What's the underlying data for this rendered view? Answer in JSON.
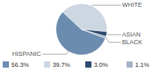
{
  "chart_data": {
    "type": "pie",
    "categories": [
      "HISPANIC",
      "WHITE",
      "ASIAN",
      "BLACK"
    ],
    "values": [
      56.3,
      39.7,
      3.0,
      1.1
    ],
    "value_labels": [
      "56.3%",
      "39.7%",
      "3.0%",
      "1.1%"
    ],
    "colors": [
      "#6b8cae",
      "#cdd7e2",
      "#2d4b6e",
      "#a3b3c6"
    ],
    "legend": "bottom"
  }
}
